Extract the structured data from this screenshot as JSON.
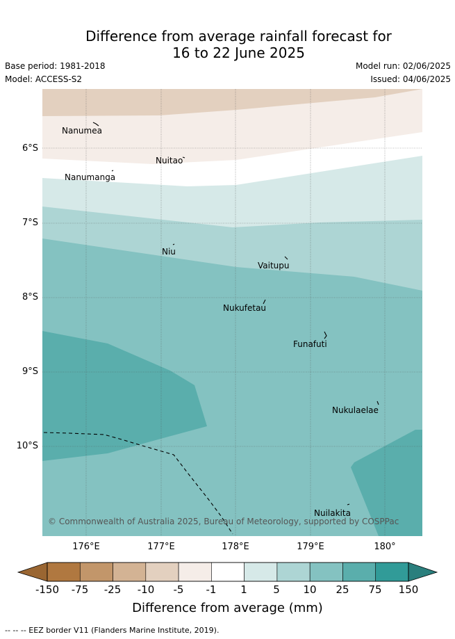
{
  "title_line1": "Difference from average rainfall forecast for",
  "title_line2": "16 to 22 June 2025",
  "base_period": "Base period: 1981-2018",
  "model": "Model: ACCESS-S2",
  "model_run": "Model run: 02/06/2025",
  "issued": "Issued: 04/06/2025",
  "latitude_labels": [
    "6°S",
    "7°S",
    "8°S",
    "9°S",
    "10°S"
  ],
  "longitude_labels": [
    "176°E",
    "177°E",
    "178°E",
    "179°E",
    "180°"
  ],
  "islands": [
    "Nanumea",
    "Nuitao",
    "Nanumanga",
    "Niu",
    "Vaitupu",
    "Nukufetau",
    "Funafuti",
    "Nukulaelae",
    "Nuilakita"
  ],
  "copyright": "© Commonwealth of Australia 2025, Bureau of Meteorology, supported by COSPPac",
  "colorbar": {
    "ticks": [
      "-150",
      "-75",
      "-25",
      "-10",
      "-5",
      "-1",
      "1",
      "5",
      "10",
      "25",
      "75",
      "150"
    ],
    "title": "Difference from average (mm)",
    "colors": [
      "#b07840",
      "#c2966a",
      "#d3b394",
      "#e3d0bf",
      "#f5ede8",
      "#ffffff",
      "#d6e9e8",
      "#add5d4",
      "#84c2c1",
      "#5aaeac",
      "#319b98"
    ],
    "extend_low_color": "#9a6632",
    "extend_high_color": "#2a7f7d"
  },
  "footer": "-- -- -- EEZ border V11 (Flanders Marine Institute, 2019)."
}
